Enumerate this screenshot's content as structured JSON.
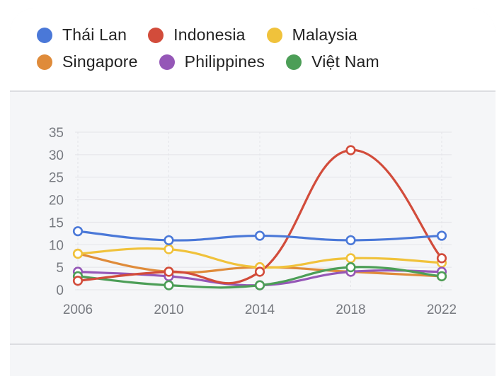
{
  "chart_data": {
    "type": "line",
    "x": [
      "2006",
      "2010",
      "2014",
      "2018",
      "2022"
    ],
    "ylim": [
      0,
      35
    ],
    "yticks": [
      "0",
      "5",
      "10",
      "15",
      "20",
      "25",
      "30",
      "35"
    ],
    "grid": true,
    "legend_position": "top",
    "series": [
      {
        "name": "Thái Lan",
        "color": "#4a78d8",
        "values": [
          13,
          11,
          12,
          11,
          12
        ]
      },
      {
        "name": "Indonesia",
        "color": "#d24c3b",
        "values": [
          2,
          4,
          4,
          31,
          7
        ]
      },
      {
        "name": "Malaysia",
        "color": "#f0c23b",
        "values": [
          8,
          9,
          5,
          7,
          6
        ]
      },
      {
        "name": "Singapore",
        "color": "#df8b3a",
        "values": [
          8,
          4,
          5,
          4,
          3
        ]
      },
      {
        "name": "Philippines",
        "color": "#9557b7",
        "values": [
          4,
          3,
          1,
          4,
          4
        ]
      },
      {
        "name": "Việt Nam",
        "color": "#4c9e57",
        "values": [
          3,
          1,
          1,
          5,
          3
        ]
      }
    ]
  }
}
